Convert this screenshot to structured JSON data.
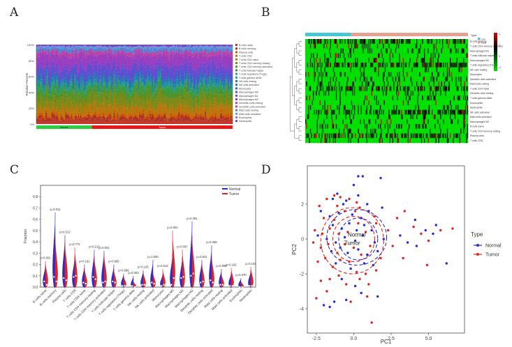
{
  "figure": {
    "panels": [
      "A",
      "B",
      "C",
      "D"
    ]
  },
  "colors": {
    "normal": "#2b2bd4",
    "tumor": "#e02424",
    "normal_bar": "#2ecc40",
    "tumor_bar": "#e81818",
    "heat_low": "#00e000",
    "heat_mid": "#000000",
    "heat_high": "#e00000",
    "type_normal": "#45c8d6",
    "type_tumor": "#e8a090"
  },
  "chart_data": [
    {
      "panel": "A",
      "type": "bar",
      "subtype": "stacked-100",
      "ylabel": "Relative Percent",
      "yticks": [
        "0%",
        "20%",
        "40%",
        "60%",
        "80%",
        "100%"
      ],
      "ylim": [
        0,
        100
      ],
      "group_labels": [
        "Normal",
        "Tumor"
      ],
      "n_samples": 170,
      "n_normal": 48,
      "legend_position": "right",
      "legend": [
        "B cells naive",
        "B cells memory",
        "Plasma cells",
        "T cells CD8",
        "T cells CD4 naive",
        "T cells CD4 memory resting",
        "T cells CD4 memory activated",
        "T cells follicular helper",
        "T cells regulatory (Tregs)",
        "T cells gamma delta",
        "NK cells resting",
        "NK cells activated",
        "Monocytes",
        "Macrophages M0",
        "Macrophages M1",
        "Macrophages M2",
        "Dendritic cells resting",
        "Dendritic cells activated",
        "Mast cells resting",
        "Mast cells activated",
        "Eosinophils",
        "Neutrophils"
      ]
    },
    {
      "panel": "B",
      "type": "heatmap",
      "n_columns": 170,
      "n_normal": 48,
      "legend_title": "Type",
      "legend_entries": [
        "con",
        "treat"
      ],
      "scale_ticks": [
        "4",
        "2",
        "0",
        "-2"
      ],
      "rows": [
        "B cells memory",
        "T cells CD4 memory activated",
        "Macrophages M1",
        "T cells follicular helper",
        "Macrophages M0",
        "T cells regulatory (Tregs)",
        "NK cells resting",
        "Monocytes",
        "Dendritic cells activated",
        "Mast cells resting",
        "T cells CD4 naive",
        "Dendritic cells resting",
        "T cells gamma delta",
        "Eosinophils",
        "Neutrophils",
        "NK cells activated",
        "Mast cells activated",
        "Macrophages M2",
        "B cells naive",
        "T cells CD4 memory resting",
        "Plasma cells",
        "T cells CD8"
      ]
    },
    {
      "panel": "C",
      "type": "violin",
      "ylabel": "Fraction",
      "ylim": [
        0,
        0.9
      ],
      "yticks": [
        "0.0",
        "0.1",
        "0.2",
        "0.3",
        "0.4",
        "0.5",
        "0.6",
        "0.7",
        "0.8"
      ],
      "legend": [
        "Normal",
        "Tumor"
      ],
      "legend_position": "top-right",
      "categories": [
        "B cells naive",
        "B cells memory",
        "Plasma cells",
        "T cells CD8",
        "T cells CD4 naive",
        "T cells CD4 memory resting",
        "T cells CD4 memory activated",
        "T cells follicular helper",
        "T cells regulatory (Tregs)",
        "T cells gamma delta",
        "NK cells resting",
        "NK cells activated",
        "Monocytes",
        "Macrophages M0",
        "Macrophages M1",
        "Macrophages M2",
        "Dendritic cells resting",
        "Dendritic cells activated",
        "Mast cells resting",
        "Mast cells activated",
        "Eosinophils",
        "Neutrophils"
      ],
      "pvalues": [
        "p=0.001",
        "p=0.011",
        "p=0.012",
        "p=0.772",
        "p=0.161",
        "p=0.213",
        "p=0.001",
        "p=0.965",
        "p=0.966",
        "p=0.003",
        "p=0.126",
        "p=1.000",
        "p=0.613",
        "p=0.001",
        "p=0.067",
        "p=0.381",
        "p=0.641",
        "p=0.308",
        "p=0.098",
        "p=0.142",
        "p=0.370",
        "p=0.104"
      ],
      "normal_max": [
        0.2,
        0.66,
        0.46,
        0.28,
        0.2,
        0.33,
        0.32,
        0.2,
        0.12,
        0.1,
        0.15,
        0.24,
        0.12,
        0.3,
        0.27,
        0.58,
        0.24,
        0.37,
        0.16,
        0.13,
        0.08,
        0.15
      ],
      "tumor_max": [
        0.23,
        0.45,
        0.41,
        0.35,
        0.17,
        0.27,
        0.3,
        0.16,
        0.1,
        0.05,
        0.14,
        0.13,
        0.16,
        0.5,
        0.33,
        0.45,
        0.22,
        0.28,
        0.12,
        0.17,
        0.05,
        0.18
      ],
      "normal_median": [
        0.05,
        0.09,
        0.08,
        0.09,
        0.04,
        0.09,
        0.04,
        0.05,
        0.01,
        0.01,
        0.02,
        0.04,
        0.01,
        0.02,
        0.08,
        0.1,
        0.04,
        0.06,
        0.02,
        0.01,
        0.0,
        0.01
      ],
      "tumor_median": [
        0.02,
        0.05,
        0.06,
        0.1,
        0.03,
        0.07,
        0.05,
        0.04,
        0.01,
        0.0,
        0.02,
        0.03,
        0.02,
        0.08,
        0.09,
        0.12,
        0.05,
        0.04,
        0.02,
        0.01,
        0.0,
        0.01
      ]
    },
    {
      "panel": "D",
      "type": "scatter",
      "xlabel": "PC1",
      "ylabel": "PC2",
      "xlim": [
        -3.1,
        7.4
      ],
      "ylim": [
        -5.4,
        4.2
      ],
      "xticks": [
        "-2.5",
        "0.0",
        "2.5",
        "5.0"
      ],
      "xtick_values": [
        -2.5,
        0,
        2.5,
        5
      ],
      "yticks": [
        "2",
        "0",
        "-2",
        "-4"
      ],
      "ytick_values": [
        2,
        0,
        -2,
        -4
      ],
      "legend_title": "Type",
      "legend_position": "right",
      "centroid_labels": [
        "Normal",
        "Tumor"
      ],
      "centroids": [
        [
          0.2,
          0.1
        ],
        [
          -0.1,
          -0.1
        ]
      ],
      "series": [
        {
          "name": "Normal",
          "points": [
            [
              0.3,
              3.6
            ],
            [
              0.6,
              3.6
            ],
            [
              1.8,
              3.5
            ],
            [
              -1.1,
              2.6
            ],
            [
              -1.4,
              2.3
            ],
            [
              -0.7,
              2.0
            ],
            [
              -0.5,
              2.2
            ],
            [
              0.9,
              2.0
            ],
            [
              -2.2,
              1.6
            ],
            [
              -1.6,
              1.3
            ],
            [
              -1.0,
              1.5
            ],
            [
              -0.1,
              1.4
            ],
            [
              0.5,
              1.2
            ],
            [
              1.0,
              1.6
            ],
            [
              1.9,
              1.8
            ],
            [
              -1.4,
              0.8
            ],
            [
              -0.8,
              0.6
            ],
            [
              -0.3,
              0.9
            ],
            [
              0.2,
              0.5
            ],
            [
              0.7,
              0.8
            ],
            [
              1.2,
              0.5
            ],
            [
              -2.4,
              0.2
            ],
            [
              -1.8,
              0.0
            ],
            [
              -1.2,
              -0.2
            ],
            [
              -0.6,
              0.1
            ],
            [
              0.1,
              -0.1
            ],
            [
              0.6,
              0.2
            ],
            [
              1.4,
              -0.2
            ],
            [
              2.0,
              0.0
            ],
            [
              -1.5,
              -0.7
            ],
            [
              -0.9,
              -0.5
            ],
            [
              -0.4,
              -0.8
            ],
            [
              0.3,
              -0.6
            ],
            [
              0.9,
              -0.9
            ],
            [
              1.6,
              -0.7
            ],
            [
              -1.2,
              -1.4
            ],
            [
              -0.2,
              -1.7
            ],
            [
              0.7,
              -1.4
            ],
            [
              1.3,
              -1.5
            ],
            [
              -0.8,
              -2.3
            ],
            [
              0.1,
              -2.7
            ],
            [
              0.5,
              -3.1
            ],
            [
              -1.3,
              -3.6
            ],
            [
              -1.6,
              -3.9
            ],
            [
              -0.5,
              -3.5
            ],
            [
              1.6,
              -3.3
            ],
            [
              -2.0,
              -3.8
            ],
            [
              3.6,
              -0.2
            ],
            [
              4.2,
              -0.4
            ],
            [
              4.8,
              0.5
            ],
            [
              5.3,
              0.3
            ],
            [
              3.1,
              0.2
            ],
            [
              5.5,
              0.8
            ],
            [
              6.2,
              -1.4
            ],
            [
              4.1,
              1.1
            ],
            [
              0.0,
              3.1
            ],
            [
              0.3,
              2.5
            ]
          ]
        },
        {
          "name": "Tumor",
          "points": [
            [
              -1.8,
              2.3
            ],
            [
              -1.3,
              2.5
            ],
            [
              -0.9,
              2.4
            ],
            [
              0.2,
              2.1
            ],
            [
              -0.3,
              2.3
            ],
            [
              -2.3,
              1.9
            ],
            [
              -2.0,
              1.2
            ],
            [
              -1.1,
              1.9
            ],
            [
              -0.6,
              1.6
            ],
            [
              0.4,
              1.8
            ],
            [
              1.4,
              1.3
            ],
            [
              -2.6,
              0.5
            ],
            [
              -2.1,
              0.3
            ],
            [
              -1.6,
              0.6
            ],
            [
              -1.0,
              0.3
            ],
            [
              -0.4,
              0.4
            ],
            [
              0.3,
              0.9
            ],
            [
              0.8,
              0.4
            ],
            [
              1.5,
              0.9
            ],
            [
              2.3,
              0.5
            ],
            [
              -2.2,
              -0.5
            ],
            [
              -1.7,
              -0.3
            ],
            [
              -1.1,
              -0.8
            ],
            [
              -0.6,
              -0.3
            ],
            [
              0.0,
              -0.5
            ],
            [
              0.5,
              -0.9
            ],
            [
              1.1,
              -0.4
            ],
            [
              1.8,
              -1.1
            ],
            [
              -2.4,
              -1.3
            ],
            [
              -1.9,
              -1.1
            ],
            [
              -1.4,
              -1.6
            ],
            [
              -0.9,
              -1.2
            ],
            [
              -0.3,
              -1.3
            ],
            [
              0.2,
              -1.9
            ],
            [
              0.8,
              -2.0
            ],
            [
              1.5,
              -1.8
            ],
            [
              -2.2,
              -2.4
            ],
            [
              -1.6,
              -2.3
            ],
            [
              -1.0,
              -2.1
            ],
            [
              -0.5,
              -2.6
            ],
            [
              0.4,
              -2.3
            ],
            [
              1.0,
              -2.6
            ],
            [
              -1.8,
              -3.0
            ],
            [
              -2.5,
              -3.4
            ],
            [
              -0.2,
              -3.6
            ],
            [
              0.9,
              -3.3
            ],
            [
              1.2,
              -4.8
            ],
            [
              3.4,
              1.6
            ],
            [
              4.0,
              0.7
            ],
            [
              4.5,
              0.3
            ],
            [
              5.0,
              -0.1
            ],
            [
              5.8,
              0.5
            ],
            [
              3.3,
              -1.1
            ],
            [
              4.9,
              -1.5
            ],
            [
              6.6,
              0.6
            ],
            [
              2.6,
              -0.4
            ],
            [
              2.9,
              1.2
            ],
            [
              -2.7,
              -0.2
            ],
            [
              -1.3,
              1.1
            ],
            [
              0.1,
              1.6
            ]
          ]
        }
      ]
    }
  ]
}
